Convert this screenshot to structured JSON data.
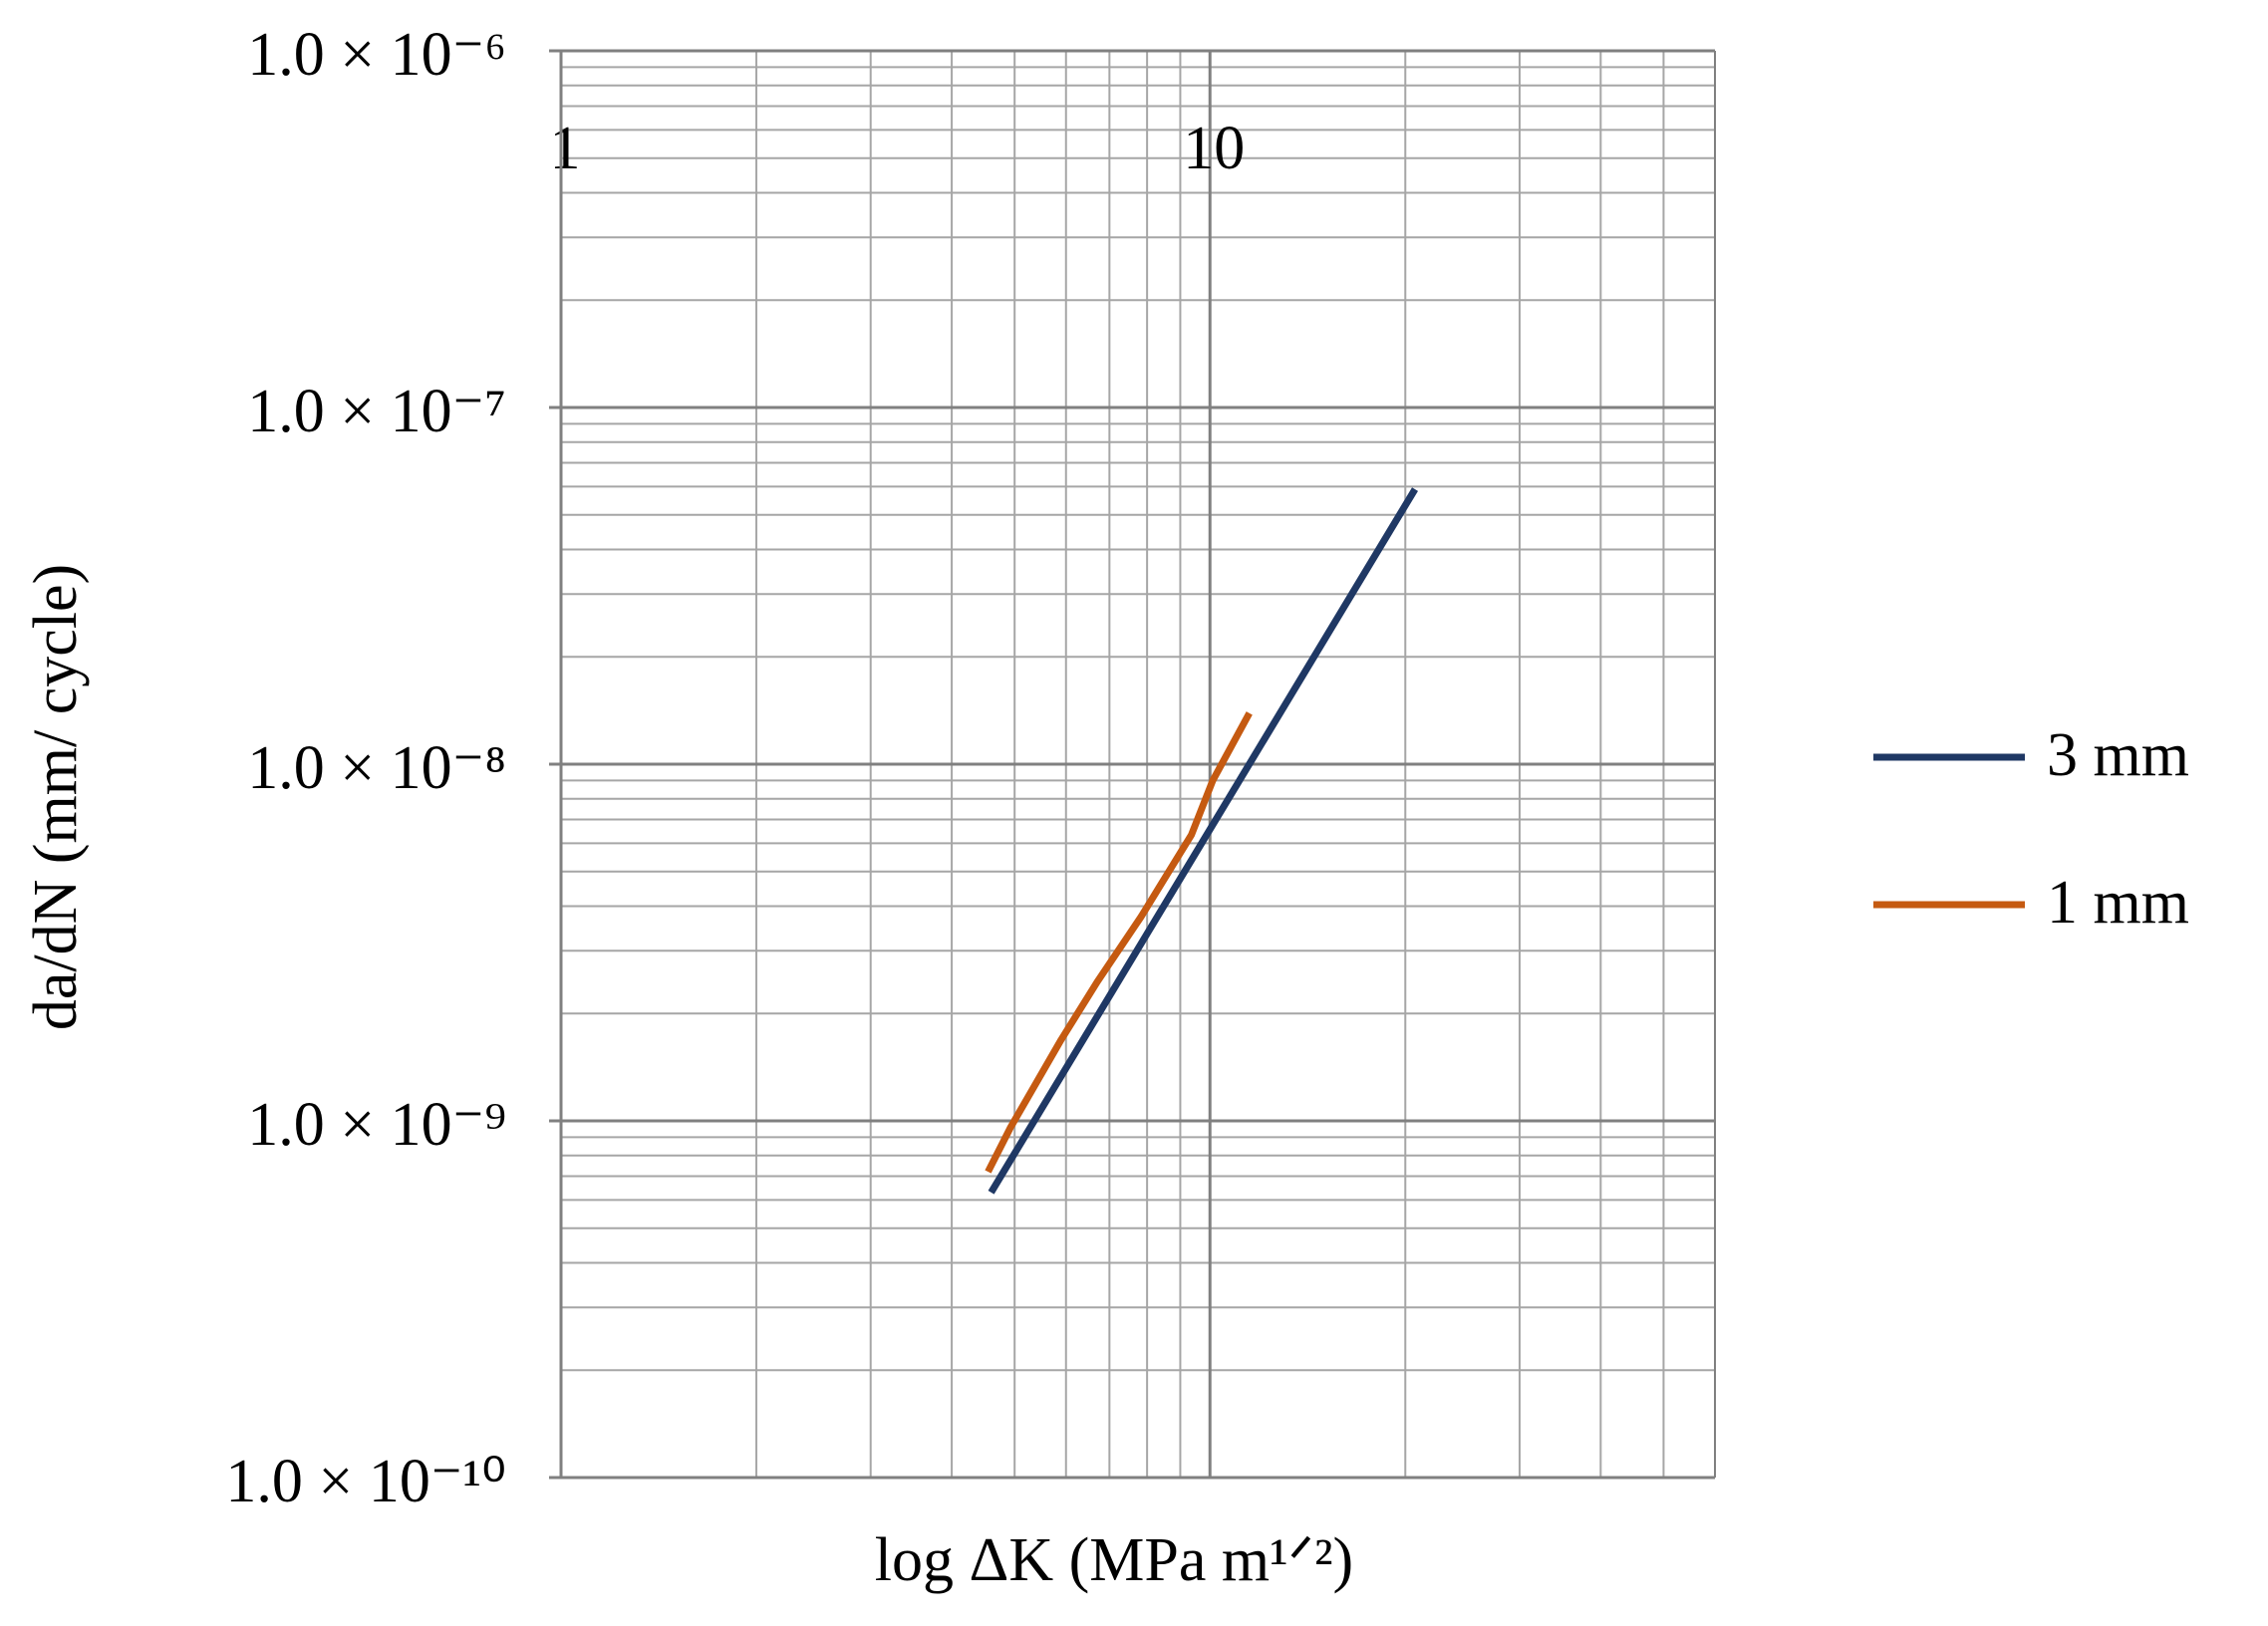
{
  "chart_data": {
    "type": "line",
    "x_label": "log ΔK (MPa m¹ᐟ²)",
    "y_label": "da/dN (mm/ cycle)",
    "log_x": true,
    "log_y": true,
    "grid": true,
    "minor_grid": true,
    "xlim": [
      1,
      60
    ],
    "ylim": [
      1e-10,
      1e-06
    ],
    "xticks": [
      1,
      10
    ],
    "yticks": [
      {
        "value": 1e-10,
        "label": "1.0 × 10⁻¹⁰"
      },
      {
        "value": 1e-09,
        "label": "1.0 × 10⁻⁹"
      },
      {
        "value": 1e-08,
        "label": "1.0 × 10⁻⁸"
      },
      {
        "value": 1e-07,
        "label": "1.0 × 10⁻⁷"
      },
      {
        "value": 1e-06,
        "label": "1.0 × 10⁻⁶"
      }
    ],
    "legend": "right",
    "series": [
      {
        "name": "3 mm",
        "color": "#1f3864",
        "x": [
          4.6,
          20.7
        ],
        "values": [
          6.3e-10,
          5.9e-08
        ]
      },
      {
        "name": "1 mm",
        "color": "#c55a11",
        "x": [
          4.55,
          4.93,
          5.9,
          6.7,
          7.82,
          9.36,
          10.1,
          11.5
        ],
        "values": [
          7.2e-10,
          9.6e-10,
          1.69e-09,
          2.45e-09,
          3.72e-09,
          6.33e-09,
          9e-09,
          1.39e-08
        ]
      }
    ]
  }
}
